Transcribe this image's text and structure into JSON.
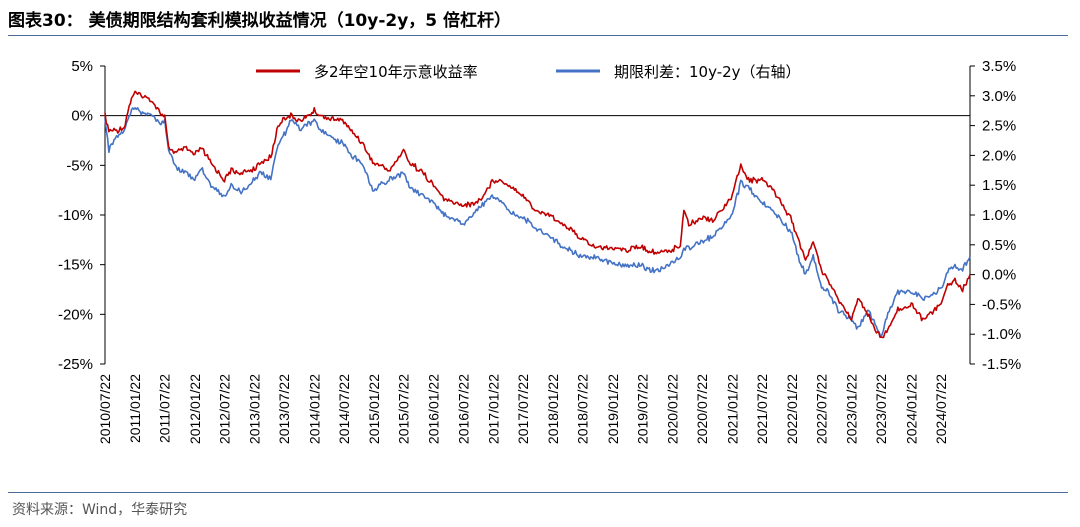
{
  "figure": {
    "title": "图表30：  美债期限结构套利模拟收益情况（10y-2y，5 倍杠杆）",
    "source": "资料来源：Wind，华泰研究"
  },
  "chart_data": {
    "type": "line",
    "title": "图表30：  美债期限结构套利模拟收益情况（10y-2y，5 倍杠杆）",
    "xlabel": "",
    "ylabel_left": "",
    "ylabel_right": "",
    "x_range": [
      "2010-07-22",
      "2025-01-15"
    ],
    "x_ticks": [
      "2010/07/22",
      "2011/01/22",
      "2011/07/22",
      "2012/01/22",
      "2012/07/22",
      "2013/01/22",
      "2013/07/22",
      "2014/01/22",
      "2014/07/22",
      "2015/01/22",
      "2015/07/22",
      "2016/01/22",
      "2016/07/22",
      "2017/01/22",
      "2017/07/22",
      "2018/01/22",
      "2018/07/22",
      "2019/01/22",
      "2019/07/22",
      "2020/01/22",
      "2020/07/22",
      "2021/01/22",
      "2021/07/22",
      "2022/01/22",
      "2022/07/22",
      "2023/01/22",
      "2023/07/22",
      "2024/01/22",
      "2024/07/22"
    ],
    "y_left": {
      "ticks": [
        "5%",
        "0%",
        "-5%",
        "-10%",
        "-15%",
        "-20%",
        "-25%"
      ],
      "range": [
        -25,
        5
      ],
      "unit": "%"
    },
    "y_right": {
      "ticks": [
        "3.5%",
        "3.0%",
        "2.5%",
        "2.0%",
        "1.5%",
        "1.0%",
        "0.5%",
        "0.0%",
        "-0.5%",
        "-1.0%",
        "-1.5%"
      ],
      "range": [
        -1.5,
        3.5
      ],
      "unit": "%"
    },
    "grid": false,
    "legend_placement": "top-center",
    "series": [
      {
        "name": "多2年空10年示意收益率",
        "axis": "left",
        "color": "#c00000",
        "points": [
          [
            "2010-07-22",
            0
          ],
          [
            "2010-08-15",
            -1.5
          ],
          [
            "2010-10-01",
            -1.5
          ],
          [
            "2010-11-15",
            -1.2
          ],
          [
            "2011-01-01",
            1.8
          ],
          [
            "2011-01-22",
            2.2
          ],
          [
            "2011-03-01",
            2.0
          ],
          [
            "2011-05-01",
            1.6
          ],
          [
            "2011-06-15",
            0.5
          ],
          [
            "2011-07-22",
            -0.2
          ],
          [
            "2011-08-15",
            -3.2
          ],
          [
            "2011-10-01",
            -3.7
          ],
          [
            "2011-12-01",
            -3.3
          ],
          [
            "2012-01-22",
            -4.0
          ],
          [
            "2012-03-01",
            -3.2
          ],
          [
            "2012-05-01",
            -4.8
          ],
          [
            "2012-07-22",
            -6.5
          ],
          [
            "2012-09-01",
            -5.5
          ],
          [
            "2012-11-01",
            -5.8
          ],
          [
            "2013-01-22",
            -5.3
          ],
          [
            "2013-03-01",
            -4.8
          ],
          [
            "2013-05-01",
            -4.2
          ],
          [
            "2013-06-15",
            -1.0
          ],
          [
            "2013-07-22",
            -0.2
          ],
          [
            "2013-09-01",
            0.0
          ],
          [
            "2013-11-01",
            -0.5
          ],
          [
            "2014-01-22",
            0.5
          ],
          [
            "2014-03-01",
            0.0
          ],
          [
            "2014-05-01",
            -0.3
          ],
          [
            "2014-07-22",
            -0.5
          ],
          [
            "2014-09-01",
            -1.5
          ],
          [
            "2014-11-01",
            -2.5
          ],
          [
            "2015-01-22",
            -4.8
          ],
          [
            "2015-03-01",
            -5.0
          ],
          [
            "2015-05-01",
            -5.5
          ],
          [
            "2015-07-22",
            -3.5
          ],
          [
            "2015-09-01",
            -4.8
          ],
          [
            "2015-11-01",
            -5.5
          ],
          [
            "2016-01-22",
            -7.0
          ],
          [
            "2016-04-01",
            -8.5
          ],
          [
            "2016-07-22",
            -9.0
          ],
          [
            "2016-09-01",
            -9.0
          ],
          [
            "2016-11-01",
            -8.5
          ],
          [
            "2017-01-22",
            -6.5
          ],
          [
            "2017-03-01",
            -6.5
          ],
          [
            "2017-05-01",
            -7.0
          ],
          [
            "2017-07-22",
            -8.0
          ],
          [
            "2017-10-01",
            -9.5
          ],
          [
            "2018-01-22",
            -10.2
          ],
          [
            "2018-04-01",
            -11.0
          ],
          [
            "2018-07-22",
            -12.5
          ],
          [
            "2018-10-01",
            -13.2
          ],
          [
            "2019-01-22",
            -13.3
          ],
          [
            "2019-04-01",
            -13.5
          ],
          [
            "2019-07-22",
            -13.2
          ],
          [
            "2019-10-01",
            -13.8
          ],
          [
            "2020-01-22",
            -13.5
          ],
          [
            "2020-03-10",
            -13.0
          ],
          [
            "2020-04-01",
            -9.3
          ],
          [
            "2020-05-01",
            -11.0
          ],
          [
            "2020-07-22",
            -10.2
          ],
          [
            "2020-10-01",
            -10.5
          ],
          [
            "2021-01-22",
            -8.0
          ],
          [
            "2021-03-15",
            -5.0
          ],
          [
            "2021-05-01",
            -6.5
          ],
          [
            "2021-07-22",
            -6.5
          ],
          [
            "2021-10-01",
            -7.5
          ],
          [
            "2022-01-22",
            -10.5
          ],
          [
            "2022-03-01",
            -12.5
          ],
          [
            "2022-04-15",
            -14.5
          ],
          [
            "2022-06-01",
            -12.8
          ],
          [
            "2022-07-22",
            -15.5
          ],
          [
            "2022-09-01",
            -16.5
          ],
          [
            "2022-11-01",
            -18.5
          ],
          [
            "2023-01-22",
            -20.5
          ],
          [
            "2023-03-01",
            -18.5
          ],
          [
            "2023-05-01",
            -20.0
          ],
          [
            "2023-07-22",
            -22.5
          ],
          [
            "2023-09-01",
            -21.5
          ],
          [
            "2023-11-01",
            -19.5
          ],
          [
            "2024-01-22",
            -19.0
          ],
          [
            "2024-04-01",
            -20.5
          ],
          [
            "2024-07-22",
            -19.0
          ],
          [
            "2024-09-01",
            -17.0
          ],
          [
            "2024-10-15",
            -16.5
          ],
          [
            "2024-12-01",
            -17.5
          ],
          [
            "2025-01-15",
            -16.0
          ]
        ]
      },
      {
        "name": "期限利差：10y-2y（右轴）",
        "axis": "right",
        "color": "#4472c4",
        "points": [
          [
            "2010-07-22",
            2.6
          ],
          [
            "2010-08-15",
            2.1
          ],
          [
            "2010-10-01",
            2.3
          ],
          [
            "2010-11-15",
            2.4
          ],
          [
            "2011-01-01",
            2.75
          ],
          [
            "2011-01-22",
            2.8
          ],
          [
            "2011-03-01",
            2.7
          ],
          [
            "2011-05-01",
            2.7
          ],
          [
            "2011-06-15",
            2.55
          ],
          [
            "2011-07-22",
            2.55
          ],
          [
            "2011-08-15",
            2.1
          ],
          [
            "2011-10-01",
            1.8
          ],
          [
            "2011-12-01",
            1.7
          ],
          [
            "2012-01-22",
            1.6
          ],
          [
            "2012-03-01",
            1.8
          ],
          [
            "2012-05-01",
            1.5
          ],
          [
            "2012-07-22",
            1.3
          ],
          [
            "2012-09-01",
            1.5
          ],
          [
            "2012-11-01",
            1.4
          ],
          [
            "2013-01-22",
            1.6
          ],
          [
            "2013-03-01",
            1.7
          ],
          [
            "2013-05-01",
            1.6
          ],
          [
            "2013-06-15",
            2.2
          ],
          [
            "2013-07-22",
            2.35
          ],
          [
            "2013-09-01",
            2.6
          ],
          [
            "2013-11-01",
            2.45
          ],
          [
            "2014-01-22",
            2.6
          ],
          [
            "2014-03-01",
            2.45
          ],
          [
            "2014-05-01",
            2.3
          ],
          [
            "2014-07-22",
            2.2
          ],
          [
            "2014-09-01",
            2.0
          ],
          [
            "2014-11-01",
            1.9
          ],
          [
            "2015-01-22",
            1.4
          ],
          [
            "2015-03-01",
            1.5
          ],
          [
            "2015-05-01",
            1.6
          ],
          [
            "2015-07-22",
            1.7
          ],
          [
            "2015-09-01",
            1.45
          ],
          [
            "2015-11-01",
            1.35
          ],
          [
            "2016-01-22",
            1.2
          ],
          [
            "2016-04-01",
            1.0
          ],
          [
            "2016-07-22",
            0.85
          ],
          [
            "2016-09-01",
            0.95
          ],
          [
            "2016-11-01",
            1.15
          ],
          [
            "2017-01-22",
            1.3
          ],
          [
            "2017-03-01",
            1.25
          ],
          [
            "2017-05-01",
            1.05
          ],
          [
            "2017-07-22",
            0.95
          ],
          [
            "2017-10-01",
            0.8
          ],
          [
            "2018-01-22",
            0.6
          ],
          [
            "2018-04-01",
            0.45
          ],
          [
            "2018-07-22",
            0.3
          ],
          [
            "2018-10-01",
            0.3
          ],
          [
            "2019-01-22",
            0.2
          ],
          [
            "2019-04-01",
            0.15
          ],
          [
            "2019-07-22",
            0.15
          ],
          [
            "2019-10-01",
            0.05
          ],
          [
            "2020-01-22",
            0.2
          ],
          [
            "2020-03-10",
            0.3
          ],
          [
            "2020-04-01",
            0.45
          ],
          [
            "2020-05-01",
            0.45
          ],
          [
            "2020-07-22",
            0.55
          ],
          [
            "2020-10-01",
            0.65
          ],
          [
            "2021-01-22",
            1.0
          ],
          [
            "2021-03-15",
            1.55
          ],
          [
            "2021-05-01",
            1.45
          ],
          [
            "2021-07-22",
            1.2
          ],
          [
            "2021-10-01",
            1.05
          ],
          [
            "2022-01-22",
            0.7
          ],
          [
            "2022-03-01",
            0.3
          ],
          [
            "2022-04-15",
            0.0
          ],
          [
            "2022-06-01",
            0.3
          ],
          [
            "2022-07-22",
            -0.2
          ],
          [
            "2022-09-01",
            -0.3
          ],
          [
            "2022-11-01",
            -0.6
          ],
          [
            "2023-01-22",
            -0.75
          ],
          [
            "2023-03-01",
            -0.9
          ],
          [
            "2023-05-01",
            -0.6
          ],
          [
            "2023-07-22",
            -1.05
          ],
          [
            "2023-09-01",
            -0.65
          ],
          [
            "2023-11-01",
            -0.3
          ],
          [
            "2024-01-22",
            -0.3
          ],
          [
            "2024-04-01",
            -0.4
          ],
          [
            "2024-07-22",
            -0.25
          ],
          [
            "2024-09-01",
            0.05
          ],
          [
            "2024-10-15",
            0.15
          ],
          [
            "2024-12-01",
            0.1
          ],
          [
            "2025-01-15",
            0.3
          ]
        ]
      }
    ]
  }
}
